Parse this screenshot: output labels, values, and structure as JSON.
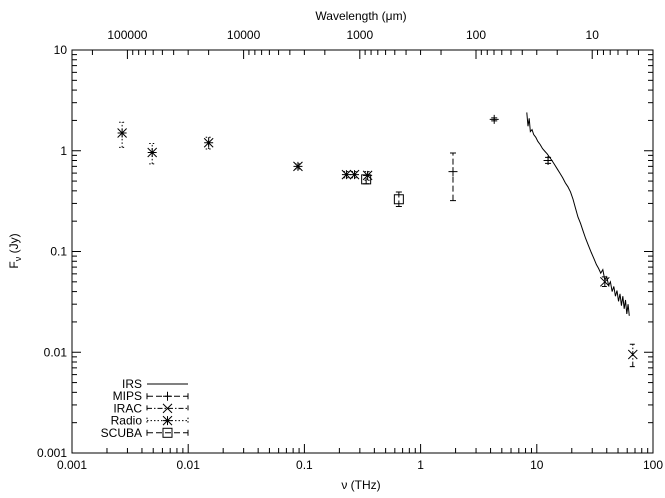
{
  "chart_data": {
    "type": "scatter",
    "xlabel": "ν (THz)",
    "ylabel": "F",
    "ylabel_subscript": "ν",
    "ylabel_unit": " (Jy)",
    "x2label": "Wavelength (μm)",
    "xscale": "log",
    "yscale": "log",
    "xlim": [
      0.001,
      100
    ],
    "ylim": [
      0.001,
      10
    ],
    "grid": false,
    "legend_position": "bottom-left",
    "x_ticks": [
      {
        "value": 0.001,
        "label": "0.001"
      },
      {
        "value": 0.01,
        "label": "0.01"
      },
      {
        "value": 0.1,
        "label": "0.1"
      },
      {
        "value": 1,
        "label": "1"
      },
      {
        "value": 10,
        "label": "10"
      },
      {
        "value": 100,
        "label": "100"
      }
    ],
    "y_ticks": [
      {
        "value": 0.001,
        "label": "0.001"
      },
      {
        "value": 0.01,
        "label": "0.01"
      },
      {
        "value": 0.1,
        "label": "0.1"
      },
      {
        "value": 1,
        "label": "1"
      },
      {
        "value": 10,
        "label": "10"
      }
    ],
    "top_ticks": [
      {
        "value": 100000,
        "label": "100000"
      },
      {
        "value": 10000,
        "label": "10000"
      },
      {
        "value": 1000,
        "label": "1000"
      },
      {
        "value": 100,
        "label": "100"
      },
      {
        "value": 10,
        "label": "10"
      }
    ],
    "series": [
      {
        "name": "IRS",
        "style": "line",
        "dash": "solid",
        "points": [
          [
            8.2,
            2.4
          ],
          [
            8.4,
            1.75
          ],
          [
            8.6,
            2.1
          ],
          [
            8.8,
            1.55
          ],
          [
            9.1,
            1.62
          ],
          [
            9.4,
            1.45
          ],
          [
            9.8,
            1.36
          ],
          [
            10.2,
            1.24
          ],
          [
            10.7,
            1.15
          ],
          [
            11.2,
            1.05
          ],
          [
            11.8,
            0.98
          ],
          [
            12.3,
            0.93
          ],
          [
            12.9,
            0.86
          ],
          [
            13.5,
            0.8
          ],
          [
            14.2,
            0.73
          ],
          [
            15.0,
            0.66
          ],
          [
            15.8,
            0.6
          ],
          [
            16.7,
            0.54
          ],
          [
            17.6,
            0.48
          ],
          [
            18.5,
            0.44
          ],
          [
            19.5,
            0.39
          ],
          [
            20.5,
            0.33
          ],
          [
            21.5,
            0.27
          ],
          [
            22.6,
            0.22
          ],
          [
            23.8,
            0.19
          ],
          [
            25.0,
            0.16
          ],
          [
            26.3,
            0.135
          ],
          [
            27.8,
            0.115
          ],
          [
            29.4,
            0.098
          ],
          [
            31.0,
            0.085
          ],
          [
            32.6,
            0.074
          ],
          [
            34.0,
            0.068
          ],
          [
            35.5,
            0.061
          ],
          [
            37.0,
            0.066
          ],
          [
            38.5,
            0.052
          ],
          [
            40.0,
            0.056
          ],
          [
            41.5,
            0.046
          ],
          [
            43.0,
            0.05
          ],
          [
            44.5,
            0.04
          ],
          [
            46.0,
            0.045
          ],
          [
            47.5,
            0.036
          ],
          [
            49.0,
            0.041
          ],
          [
            50.5,
            0.032
          ],
          [
            52.0,
            0.038
          ],
          [
            53.5,
            0.029
          ],
          [
            55.0,
            0.036
          ],
          [
            56.5,
            0.027
          ],
          [
            58.0,
            0.033
          ],
          [
            59.5,
            0.024
          ],
          [
            61.0,
            0.03
          ],
          [
            62.5,
            0.023
          ]
        ]
      },
      {
        "name": "MIPS",
        "style": "points-errorbars",
        "marker": "plus",
        "dash": "dashed",
        "points": [
          {
            "x": 1.9,
            "y": 0.62,
            "ylo": 0.32,
            "yhi": 0.95
          },
          {
            "x": 4.3,
            "y": 2.05,
            "ylo": 1.98,
            "yhi": 2.12
          },
          {
            "x": 12.5,
            "y": 0.8,
            "ylo": 0.75,
            "yhi": 0.86
          }
        ]
      },
      {
        "name": "IRAC",
        "style": "points-errorbars",
        "marker": "cross",
        "dash": "dashdot",
        "points": [
          {
            "x": 38.5,
            "y": 0.05,
            "ylo": 0.045,
            "yhi": 0.056
          },
          {
            "x": 67,
            "y": 0.0095,
            "ylo": 0.0072,
            "yhi": 0.012
          }
        ]
      },
      {
        "name": "Radio",
        "style": "points-errorbars",
        "marker": "star",
        "dash": "dotted",
        "points": [
          {
            "x": 0.0027,
            "y": 1.5,
            "ylo": 1.08,
            "yhi": 1.92
          },
          {
            "x": 0.0049,
            "y": 0.96,
            "ylo": 0.74,
            "yhi": 1.18
          },
          {
            "x": 0.015,
            "y": 1.2,
            "ylo": 1.04,
            "yhi": 1.36
          },
          {
            "x": 0.088,
            "y": 0.7,
            "ylo": 0.66,
            "yhi": 0.74
          },
          {
            "x": 0.23,
            "y": 0.58,
            "ylo": 0.54,
            "yhi": 0.62
          },
          {
            "x": 0.27,
            "y": 0.58,
            "ylo": 0.54,
            "yhi": 0.62
          },
          {
            "x": 0.35,
            "y": 0.57,
            "ylo": 0.51,
            "yhi": 0.62
          }
        ]
      },
      {
        "name": "SCUBA",
        "style": "points-errorbars",
        "marker": "square",
        "dash": "dashed",
        "points": [
          {
            "x": 0.34,
            "y": 0.52,
            "ylo": 0.47,
            "yhi": 0.57
          },
          {
            "x": 0.65,
            "y": 0.33,
            "ylo": 0.28,
            "yhi": 0.39
          }
        ]
      }
    ]
  }
}
